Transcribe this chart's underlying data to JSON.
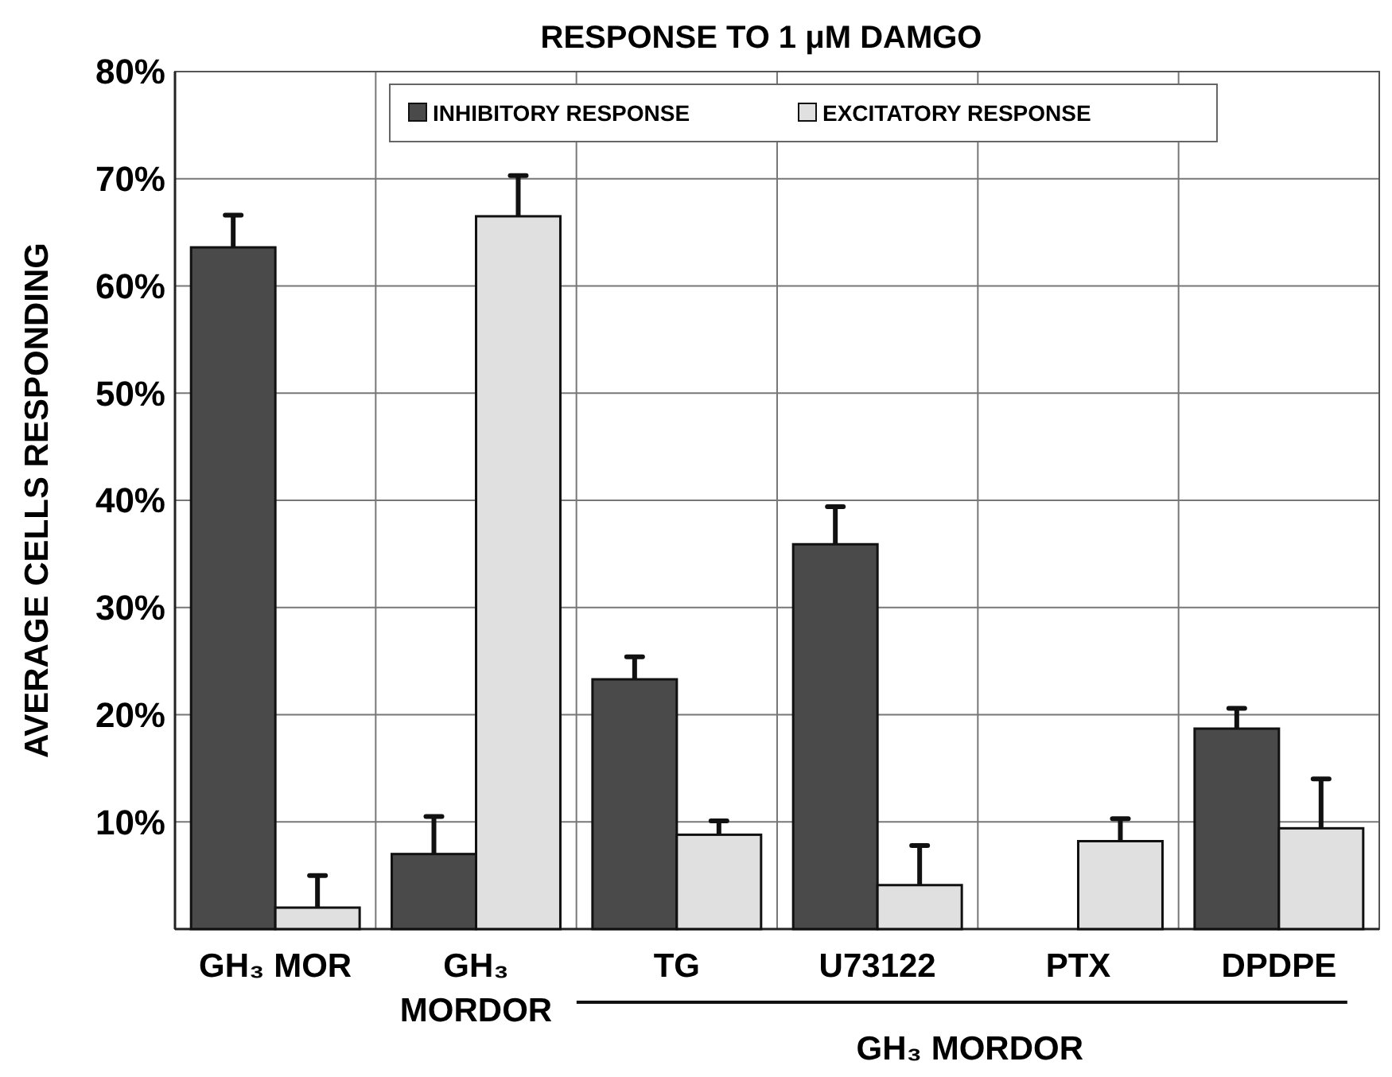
{
  "chart_data": {
    "type": "bar",
    "title": "RESPONSE TO 1 μM DAMGO",
    "ylabel": "AVERAGE CELLS RESPONDING",
    "categories": [
      "GH₃ MOR",
      "GH₃ MORDOR",
      "TG",
      "U73122",
      "PTX",
      "DPDPE"
    ],
    "series": [
      {
        "name": "INHIBITORY RESPONSE",
        "color": "#4a4a4a",
        "values": [
          63.6,
          7.0,
          23.3,
          35.9,
          0,
          18.7
        ],
        "errors": [
          [
            63.6,
            66.6
          ],
          [
            7.0,
            10.5
          ],
          [
            23.3,
            25.4
          ],
          [
            35.9,
            39.4
          ],
          null,
          [
            18.7,
            20.6
          ]
        ]
      },
      {
        "name": "EXCITATORY RESPONSE",
        "color": "#e0e0e0",
        "values": [
          2.0,
          66.5,
          8.8,
          4.1,
          8.2,
          9.4
        ],
        "errors": [
          [
            2.0,
            5.0
          ],
          [
            66.5,
            70.3
          ],
          [
            8.8,
            10.1
          ],
          [
            4.1,
            7.8
          ],
          [
            8.2,
            10.3
          ],
          [
            9.4,
            14.0
          ]
        ]
      }
    ],
    "ylim": [
      0,
      80
    ],
    "yticks": [
      {
        "value": 10,
        "label": "10%"
      },
      {
        "value": 20,
        "label": "20%"
      },
      {
        "value": 30,
        "label": "30%"
      },
      {
        "value": 40,
        "label": "40%"
      },
      {
        "value": 50,
        "label": "50%"
      },
      {
        "value": 60,
        "label": "60%"
      },
      {
        "value": 70,
        "label": "70%"
      },
      {
        "value": 80,
        "label": "80%"
      }
    ],
    "grid": true,
    "legend": "top",
    "annotations": [
      "GH₃ MORDOR"
    ]
  }
}
